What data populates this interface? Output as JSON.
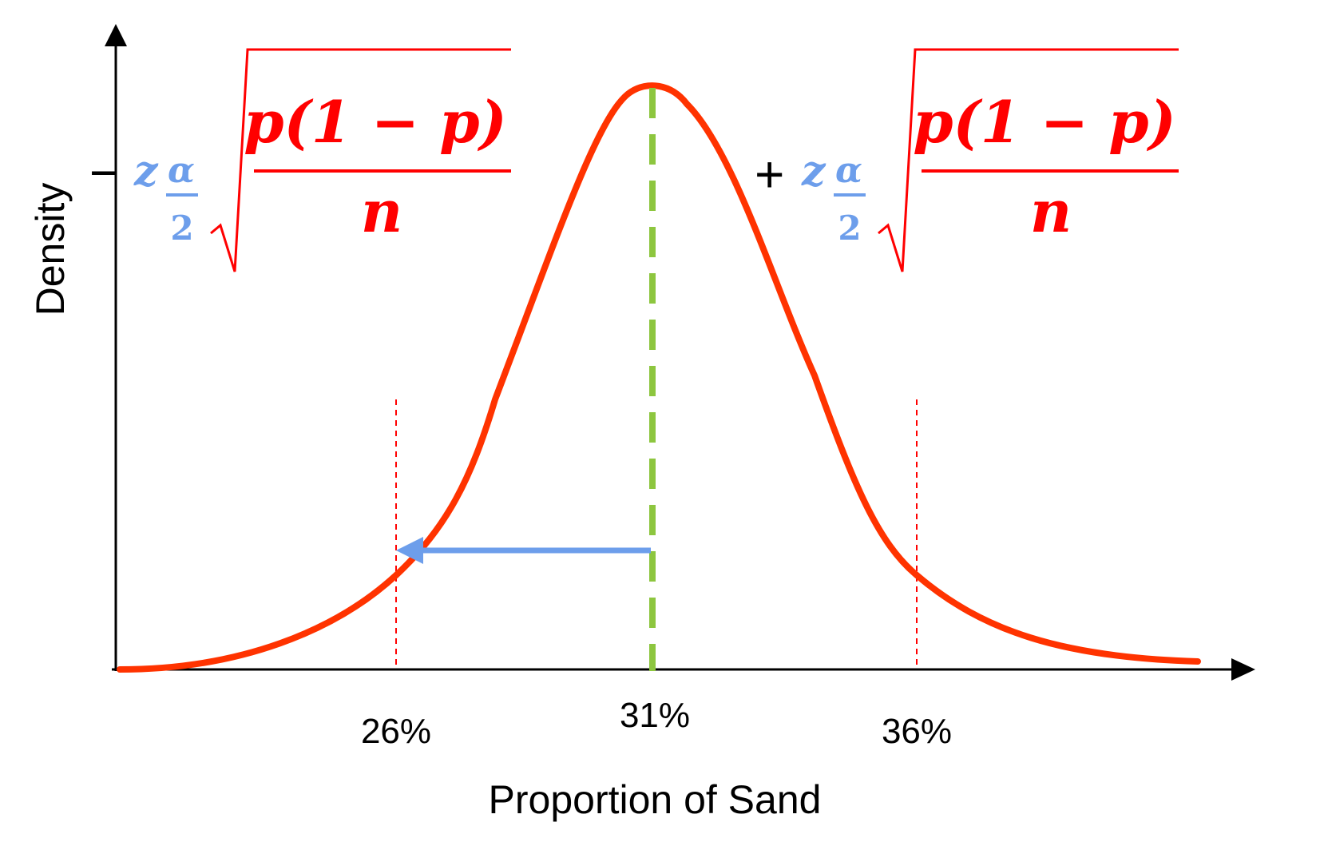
{
  "chart_data": {
    "type": "line",
    "xlabel": "Proportion of Sand",
    "ylabel": "Density",
    "x_ticks": [
      "26%",
      "31%",
      "36%"
    ],
    "mean": 31,
    "lower_bound": 26,
    "upper_bound": 36,
    "xlim": [
      20.8,
      41.6
    ],
    "series": [
      {
        "x": [
          20.8,
          22,
          24,
          26,
          28,
          30,
          31,
          32,
          34,
          36,
          38,
          41.6
        ]
      }
    ],
    "annotations": {
      "left_formula": {
        "sign": "−",
        "z": "z",
        "alpha": "α",
        "two": "2",
        "numerator": "p(1 − p)",
        "denominator": "n"
      },
      "right_formula": {
        "sign": "+",
        "z": "z",
        "alpha": "α",
        "two": "2",
        "numerator": "p(1 − p)",
        "denominator": "n"
      }
    },
    "colors": {
      "curve": "#ff3300",
      "mean_line": "#8dc63f",
      "bound_lines": "#ff0000",
      "arrow": "#6d9eeb",
      "formula_main": "#ff0000",
      "formula_z": "#6d9eeb"
    }
  }
}
